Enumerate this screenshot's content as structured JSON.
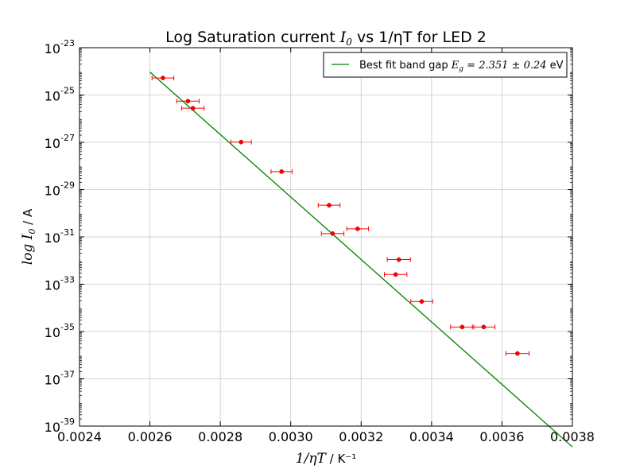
{
  "chart_data": {
    "type": "scatter",
    "title": {
      "prefix": "Log Saturation current ",
      "symbol": "I",
      "subscript": "0",
      "suffix": " vs 1/ηT for LED 2"
    },
    "xlabel": {
      "math": "1/ηT",
      "units": " / K⁻¹"
    },
    "ylabel": {
      "math": "log I",
      "subscript": "0",
      "units": " / A"
    },
    "xlim": [
      0.0024,
      0.0038
    ],
    "ylim_log10": [
      -39,
      -23
    ],
    "yscale": "log",
    "grid": true,
    "legend_position": "top-right",
    "x_ticks": [
      "0.0024",
      "0.0026",
      "0.0028",
      "0.0030",
      "0.0032",
      "0.0034",
      "0.0036",
      "0.0038"
    ],
    "x_tick_values": [
      0.0024,
      0.0026,
      0.0028,
      0.003,
      0.0032,
      0.0034,
      0.0036,
      0.0038
    ],
    "y_ticks": [
      {
        "base": "10",
        "exp": "-23",
        "value_log10": -23
      },
      {
        "base": "10",
        "exp": "-25",
        "value_log10": -25
      },
      {
        "base": "10",
        "exp": "-27",
        "value_log10": -27
      },
      {
        "base": "10",
        "exp": "-29",
        "value_log10": -29
      },
      {
        "base": "10",
        "exp": "-31",
        "value_log10": -31
      },
      {
        "base": "10",
        "exp": "-33",
        "value_log10": -33
      },
      {
        "base": "10",
        "exp": "-35",
        "value_log10": -35
      },
      {
        "base": "10",
        "exp": "-37",
        "value_log10": -37
      },
      {
        "base": "10",
        "exp": "-39",
        "value_log10": -39
      }
    ],
    "series": [
      {
        "kind": "points",
        "color": "#ff0000",
        "errorbar_color": "#ff0000",
        "points": [
          {
            "x": 0.002637,
            "log10_y": -24.28,
            "xerr": 3.1e-05
          },
          {
            "x": 0.002708,
            "log10_y": -25.26,
            "xerr": 3.2e-05
          },
          {
            "x": 0.002722,
            "log10_y": -25.56,
            "xerr": 3.2e-05
          },
          {
            "x": 0.002859,
            "log10_y": -26.99,
            "xerr": 2.9e-05
          },
          {
            "x": 0.002974,
            "log10_y": -28.24,
            "xerr": 3e-05
          },
          {
            "x": 0.003109,
            "log10_y": -29.66,
            "xerr": 3.1e-05
          },
          {
            "x": 0.003119,
            "log10_y": -30.86,
            "xerr": 3.2e-05
          },
          {
            "x": 0.00319,
            "log10_y": -30.66,
            "xerr": 3.1e-05
          },
          {
            "x": 0.003307,
            "log10_y": -31.96,
            "xerr": 3.3e-05
          },
          {
            "x": 0.003298,
            "log10_y": -32.59,
            "xerr": 3.2e-05
          },
          {
            "x": 0.003372,
            "log10_y": -33.73,
            "xerr": 3.1e-05
          },
          {
            "x": 0.003487,
            "log10_y": -34.81,
            "xerr": 3.3e-05
          },
          {
            "x": 0.003548,
            "log10_y": -34.81,
            "xerr": 3.2e-05
          },
          {
            "x": 0.003644,
            "log10_y": -35.93,
            "xerr": 3.3e-05
          }
        ]
      },
      {
        "kind": "line",
        "name": "Best fit band gap",
        "color": "#008000",
        "x": [
          0.0026,
          0.0038
        ],
        "log10_y": [
          -24.03,
          -39.88
        ]
      }
    ],
    "legend": {
      "label_prefix": "Best fit band gap ",
      "label_math": "E",
      "label_sub": "g",
      "label_value": " = 2.351 ± 0.24",
      "label_units": " eV"
    }
  }
}
